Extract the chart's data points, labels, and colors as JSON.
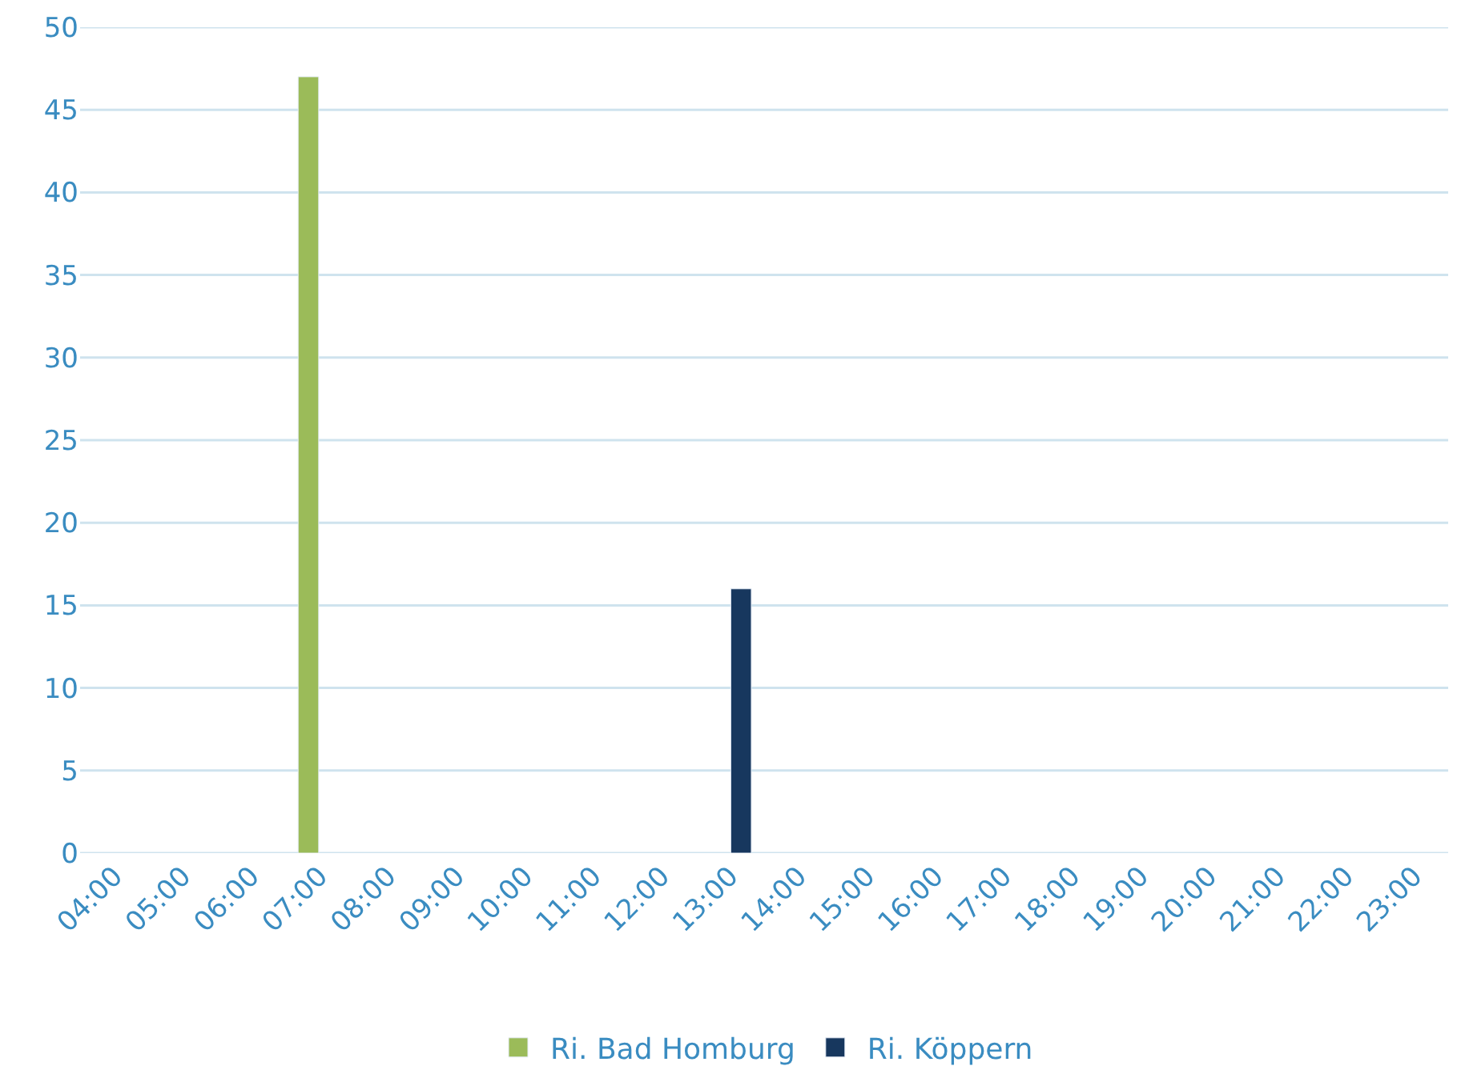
{
  "chart_data": {
    "type": "bar",
    "categories": [
      "04:00",
      "05:00",
      "06:00",
      "07:00",
      "08:00",
      "09:00",
      "10:00",
      "11:00",
      "12:00",
      "13:00",
      "14:00",
      "15:00",
      "16:00",
      "17:00",
      "18:00",
      "19:00",
      "20:00",
      "21:00",
      "22:00",
      "23:00"
    ],
    "series": [
      {
        "name": "Ri. Bad Homburg",
        "color": "#9bbb59",
        "values": [
          null,
          null,
          null,
          47,
          null,
          null,
          null,
          null,
          null,
          null,
          null,
          null,
          null,
          null,
          null,
          null,
          null,
          null,
          null,
          null
        ]
      },
      {
        "name": "Ri. Köppern",
        "color": "#17375e",
        "values": [
          null,
          null,
          null,
          null,
          null,
          null,
          null,
          null,
          null,
          16,
          null,
          null,
          null,
          null,
          null,
          null,
          null,
          null,
          null,
          null
        ]
      }
    ],
    "ylim": [
      0,
      50
    ],
    "yticks": [
      0,
      5,
      10,
      15,
      20,
      25,
      30,
      35,
      40,
      45,
      50
    ],
    "grid": "y",
    "legend": "bottom"
  }
}
